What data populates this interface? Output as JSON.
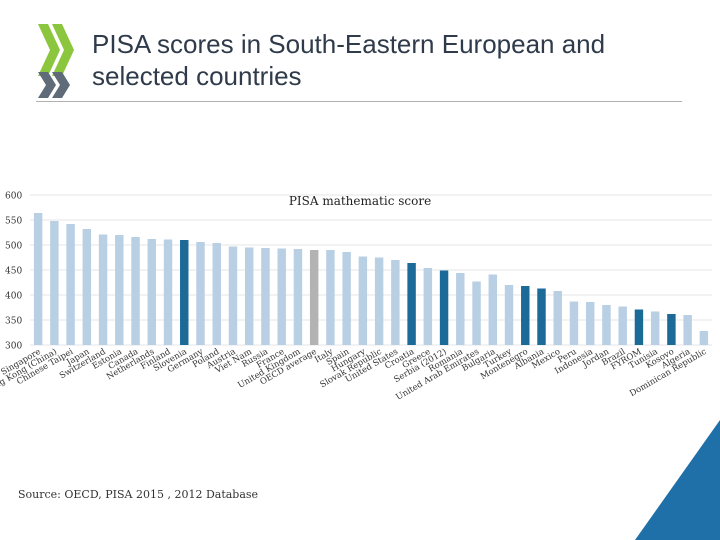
{
  "header": {
    "title": "PISA scores in South-Eastern European and selected countries"
  },
  "footer": {
    "source": "Source: OECD, PISA 2015 , 2012 Database"
  },
  "colors": {
    "default_bar": "#b8cfe4",
    "highlight_bar": "#1b6a98",
    "average_bar": "#b3b3b3",
    "logo_green": "#8cc63f",
    "logo_gray": "#5f6b78",
    "corner_blue": "#1f6fa8"
  },
  "chart_data": {
    "type": "bar",
    "title": "PISA mathematic score",
    "xlabel": "",
    "ylabel": "",
    "ylim": [
      300,
      600
    ],
    "yticks": [
      300,
      350,
      400,
      450,
      500,
      550,
      600
    ],
    "grid": true,
    "categories": [
      "Singapore",
      "Hong Kong (China)",
      "Chinese Taipei",
      "Japan",
      "Switzerland",
      "Estonia",
      "Canada",
      "Netherlands",
      "Finland",
      "Slovenia",
      "Germany",
      "Poland",
      "Austria",
      "Viet Nam",
      "Russia",
      "France",
      "United Kingdom",
      "OECD average",
      "Italy",
      "Spain",
      "Hungary",
      "Slovak Republic",
      "United States",
      "Croatia",
      "Greece",
      "Serbia (2012)",
      "Romania",
      "United Arab Emirates",
      "Bulgaria",
      "Turkey",
      "Montenegro",
      "Albania",
      "Mexico",
      "Peru",
      "Indonesia",
      "Jordan",
      "Brazil",
      "FYROM",
      "Tunisia",
      "Kosovo",
      "Algeria",
      "Dominican Republic"
    ],
    "values": [
      564,
      548,
      542,
      532,
      521,
      520,
      516,
      512,
      511,
      510,
      506,
      504,
      497,
      495,
      494,
      493,
      492,
      490,
      490,
      486,
      477,
      475,
      470,
      464,
      454,
      449,
      444,
      427,
      441,
      420,
      418,
      413,
      408,
      387,
      386,
      380,
      377,
      371,
      367,
      362,
      360,
      328
    ],
    "bar_categories_order_note": "",
    "highlight": [
      "Slovenia",
      "Croatia",
      "Serbia (2012)",
      "Montenegro",
      "Albania",
      "FYROM",
      "Kosovo"
    ],
    "average": [
      "OECD average"
    ]
  }
}
